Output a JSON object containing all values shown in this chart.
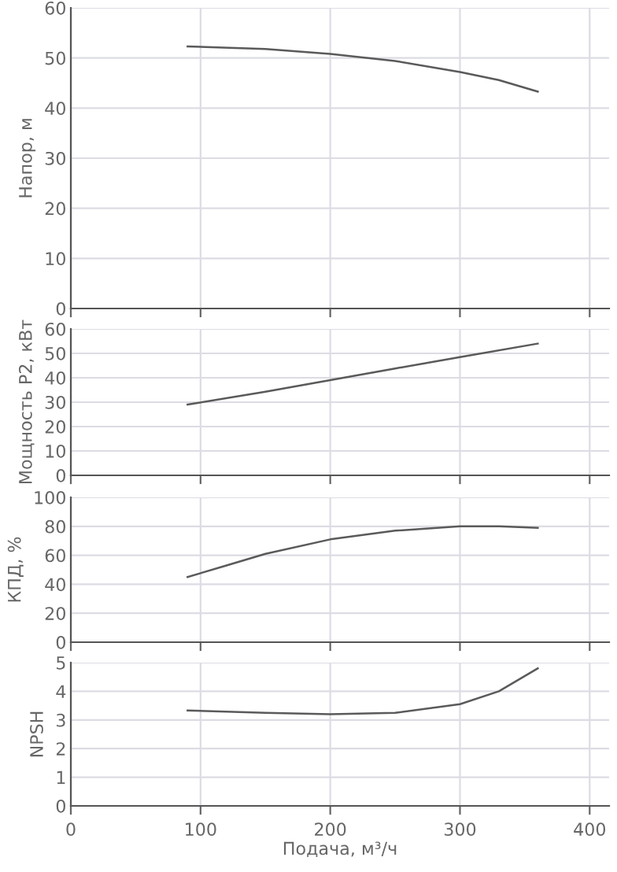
{
  "chart_data": [
    {
      "type": "line",
      "ylabel": "Напор, м",
      "x": [
        90,
        150,
        200,
        250,
        300,
        330,
        360
      ],
      "series": [
        {
          "color": "#5a5a5a",
          "values": [
            52.3,
            51.8,
            50.8,
            49.4,
            47.2,
            45.6,
            43.3
          ]
        }
      ],
      "xlim": [
        0,
        415
      ],
      "xticks": [
        0,
        100,
        200,
        300,
        400
      ],
      "ylim": [
        0,
        60
      ],
      "yticks": [
        0,
        10,
        20,
        30,
        40,
        50,
        60
      ],
      "grid": true,
      "tick_labels": "y"
    },
    {
      "type": "line",
      "ylabel": "Мощность P2, кВт",
      "x": [
        90,
        150,
        200,
        250,
        300,
        360
      ],
      "series": [
        {
          "color": "#5a5a5a",
          "values": [
            29,
            34.3,
            39,
            43.8,
            48.5,
            54
          ]
        }
      ],
      "xlim": [
        0,
        415
      ],
      "xticks": [
        0,
        100,
        200,
        300,
        400
      ],
      "ylim": [
        0,
        60
      ],
      "yticks": [
        0,
        10,
        20,
        30,
        40,
        50,
        60
      ],
      "grid": true,
      "tick_labels": "y"
    },
    {
      "type": "line",
      "ylabel": "КПД, %",
      "x": [
        90,
        120,
        150,
        200,
        250,
        300,
        330,
        360
      ],
      "series": [
        {
          "color": "#5a5a5a",
          "values": [
            45,
            53,
            61,
            71,
            77,
            80,
            80,
            79
          ]
        }
      ],
      "xlim": [
        0,
        415
      ],
      "xticks": [
        0,
        100,
        200,
        300,
        400
      ],
      "ylim": [
        0,
        100
      ],
      "yticks": [
        0,
        20,
        40,
        60,
        80,
        100
      ],
      "grid": true,
      "tick_labels": "y"
    },
    {
      "type": "line",
      "ylabel": "NPSH",
      "xlabel": "Подача, м³/ч",
      "x": [
        90,
        150,
        200,
        250,
        300,
        330,
        360
      ],
      "series": [
        {
          "color": "#5a5a5a",
          "values": [
            3.33,
            3.25,
            3.2,
            3.25,
            3.55,
            4.0,
            4.8
          ]
        }
      ],
      "xlim": [
        0,
        415
      ],
      "xticks": [
        0,
        100,
        200,
        300,
        400
      ],
      "ylim": [
        0,
        5
      ],
      "yticks": [
        0,
        1,
        2,
        3,
        4,
        5
      ],
      "grid": true
    }
  ]
}
